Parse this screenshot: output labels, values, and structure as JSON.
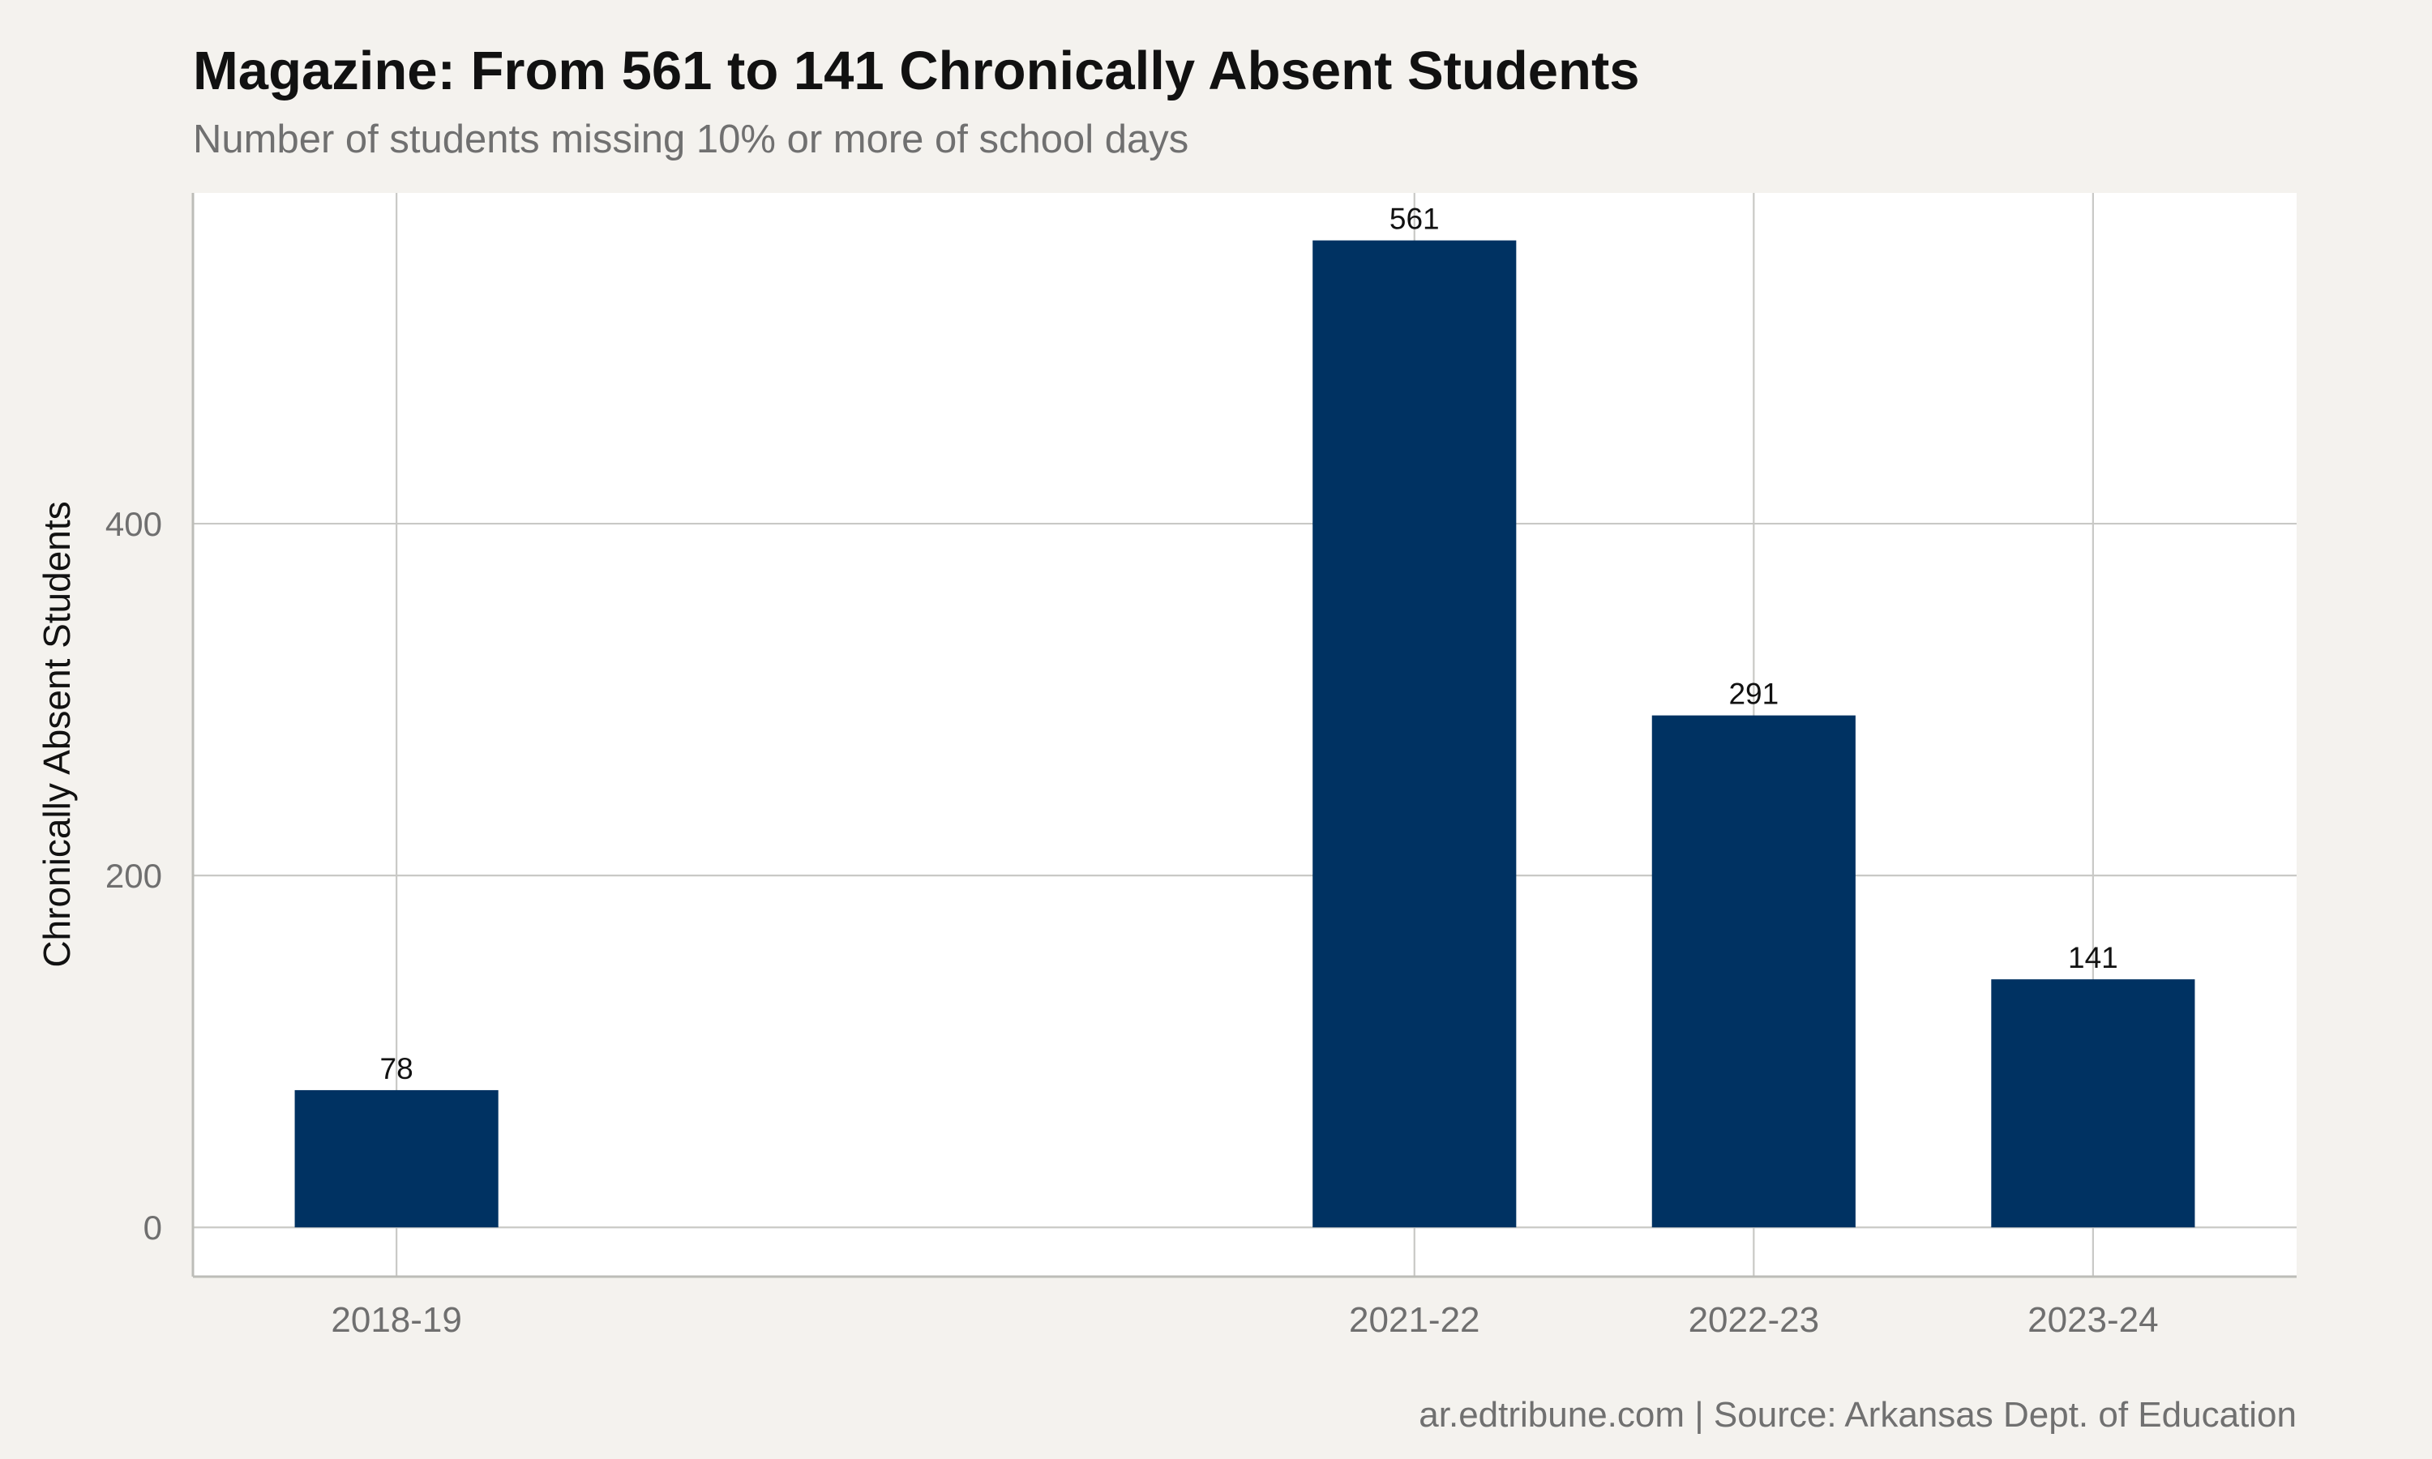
{
  "chart_data": {
    "type": "bar",
    "title": "Magazine: From 561 to 141 Chronically Absent Students",
    "subtitle": "Number of students missing 10% or more of school days",
    "xlabel": "",
    "ylabel": "Chronically Absent Students",
    "caption": "ar.edtribune.com | Source: Arkansas Dept. of Education",
    "categories": [
      "2018-19",
      "2021-22",
      "2022-23",
      "2023-24"
    ],
    "x_positions": [
      2018,
      2021,
      2022,
      2023
    ],
    "xlim": [
      2017.4,
      2023.6
    ],
    "values": [
      78,
      561,
      291,
      141
    ],
    "data_labels": [
      "78",
      "561",
      "291",
      "141"
    ],
    "ylim": [
      -28,
      588
    ],
    "yticks": [
      0,
      200,
      400
    ],
    "ytick_labels": [
      "0",
      "200",
      "400"
    ],
    "grid": true,
    "legend": "none",
    "colors": {
      "bar": "#003262",
      "panel": "#ffffff",
      "background": "#f4f2ee"
    }
  }
}
